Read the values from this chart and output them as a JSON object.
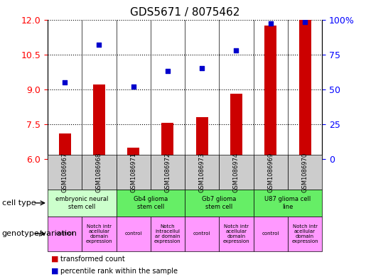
{
  "title": "GDS5671 / 8075462",
  "samples": [
    "GSM1086967",
    "GSM1086968",
    "GSM1086971",
    "GSM1086972",
    "GSM1086973",
    "GSM1086974",
    "GSM1086969",
    "GSM1086970"
  ],
  "transformed_count": [
    7.1,
    9.2,
    6.5,
    7.55,
    7.8,
    8.8,
    11.75,
    12.0
  ],
  "percentile_rank": [
    55,
    82,
    52,
    63,
    65,
    78,
    97,
    98
  ],
  "ylim_left": [
    6,
    12
  ],
  "ylim_right": [
    0,
    100
  ],
  "yticks_left": [
    6,
    7.5,
    9,
    10.5,
    12
  ],
  "yticks_right": [
    0,
    25,
    50,
    75,
    100
  ],
  "bar_color": "#cc0000",
  "dot_color": "#0000cc",
  "bar_bottom": 6,
  "legend_bar_label": "transformed count",
  "legend_dot_label": "percentile rank within the sample",
  "cell_type_label": "cell type",
  "genotype_label": "genotype/variation",
  "cell_groups": [
    {
      "start": 0,
      "end": 1,
      "label": "embryonic neural\nstem cell",
      "color": "#ccffcc"
    },
    {
      "start": 2,
      "end": 3,
      "label": "Gb4 glioma\nstem cell",
      "color": "#66ee66"
    },
    {
      "start": 4,
      "end": 5,
      "label": "Gb7 glioma\nstem cell",
      "color": "#66ee66"
    },
    {
      "start": 6,
      "end": 7,
      "label": "U87 glioma cell\nline",
      "color": "#66ee66"
    }
  ],
  "geno_labels": [
    "control",
    "Notch intr\nacellular\ndomain\nexpression",
    "control",
    "Notch\nintracellul\nar domain\nexpression",
    "control",
    "Notch intr\nacellular\ndomain\nexpression",
    "control",
    "Notch intr\nacellular\ndomain\nexpression"
  ],
  "geno_color": "#ff99ff",
  "gsm_bg": "#cccccc",
  "tick_fontsize": 9,
  "title_fontsize": 11
}
